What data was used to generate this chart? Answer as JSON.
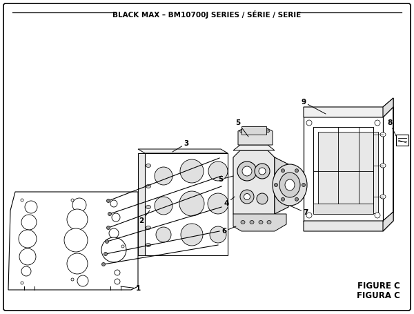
{
  "title": "BLACK MAX – BM10700J SERIES / SÉRIE / SERIE",
  "title_fontsize": 7.5,
  "background_color": "#ffffff",
  "border_color": "#000000",
  "figure_label": "FIGURE C",
  "figure_label2": "FIGURA C",
  "label_fontsize": 8.5
}
